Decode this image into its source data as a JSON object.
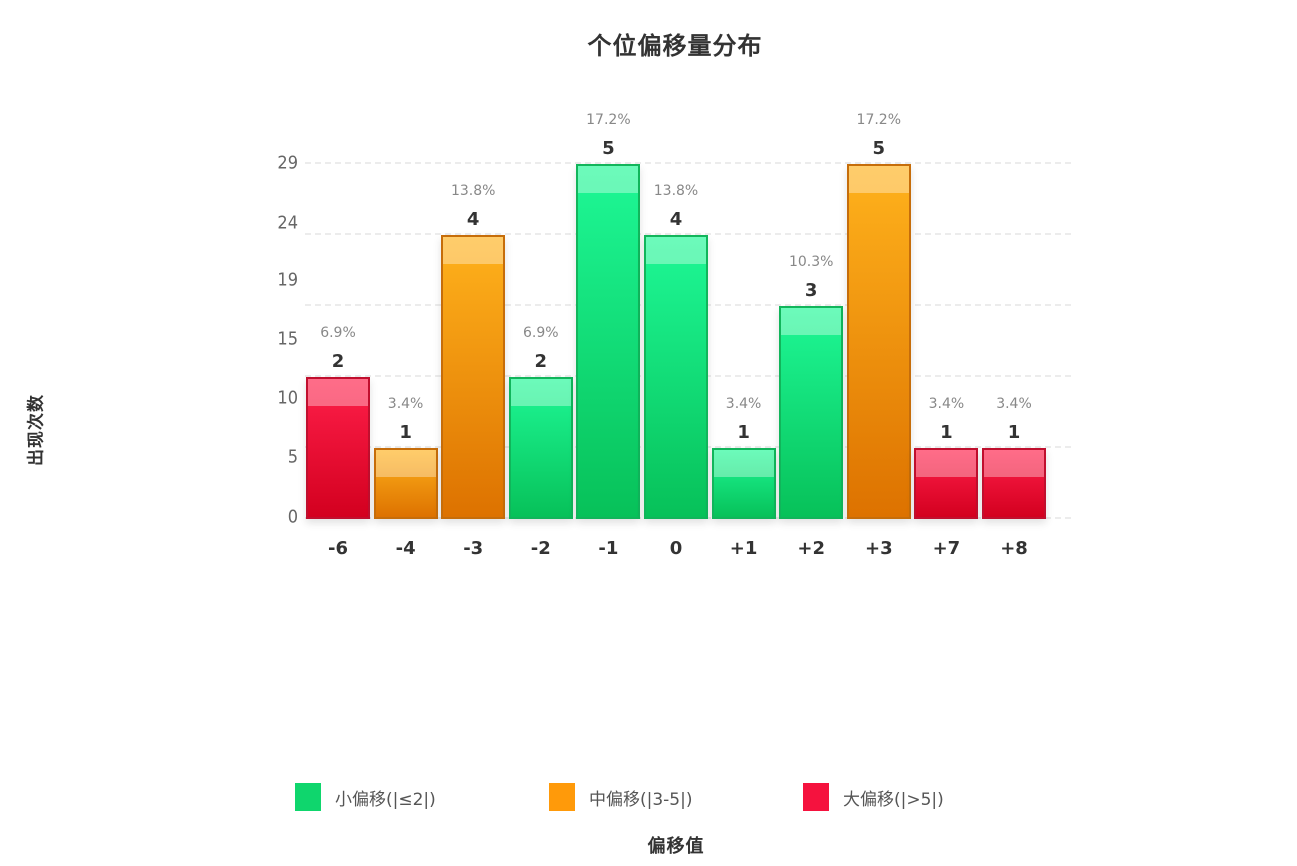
{
  "chart_data": {
    "type": "bar",
    "title": "个位偏移量分布",
    "xlabel": "偏移值",
    "ylabel": "出现次数",
    "categories": [
      "-6",
      "-4",
      "-3",
      "-2",
      "-1",
      "0",
      "+1",
      "+2",
      "+3",
      "+7",
      "+8"
    ],
    "values": [
      2,
      1,
      4,
      2,
      5,
      4,
      1,
      3,
      5,
      1,
      1
    ],
    "percentages": [
      "6.9%",
      "3.4%",
      "13.8%",
      "6.9%",
      "17.2%",
      "13.8%",
      "3.4%",
      "10.3%",
      "17.2%",
      "3.4%",
      "3.4%"
    ],
    "groups": [
      "large",
      "medium",
      "medium",
      "small",
      "small",
      "small",
      "small",
      "small",
      "medium",
      "large",
      "large"
    ],
    "ytick_labels": [
      "0",
      "5",
      "10",
      "15",
      "19",
      "24",
      "29"
    ],
    "ylim": [
      0,
      5
    ],
    "grid": true,
    "legend_position": "bottom",
    "legend": [
      {
        "key": "small",
        "label": "小偏移(|≤2|)",
        "color": "#0fd66d"
      },
      {
        "key": "medium",
        "label": "中偏移(|3-5|)",
        "color": "#ff9a0a"
      },
      {
        "key": "large",
        "label": "大偏移(|>5|)",
        "color": "#f5123e"
      }
    ]
  }
}
